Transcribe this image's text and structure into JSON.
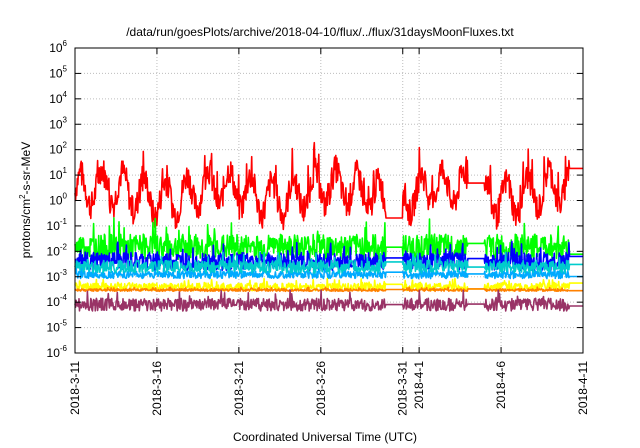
{
  "chart_data": {
    "type": "line",
    "title": "/data/run/goesPlots/archive/2018-04-10/flux/../flux/31daysMoonFluxes.txt",
    "xlabel": "Coordinated Universal Time (UTC)",
    "ylabel": "protons/cm²-s-sr-MeV",
    "ylabel_parts": {
      "pre": "protons/cm",
      "sup": "2",
      "post": "-s-sr-MeV"
    },
    "y_scale": "log",
    "ylim": [
      1e-06,
      1000000.0
    ],
    "y_ticks": [
      {
        "base": "10",
        "exp": "-6",
        "value": 1e-06
      },
      {
        "base": "10",
        "exp": "-5",
        "value": 1e-05
      },
      {
        "base": "10",
        "exp": "-4",
        "value": 0.0001
      },
      {
        "base": "10",
        "exp": "-3",
        "value": 0.001
      },
      {
        "base": "10",
        "exp": "-2",
        "value": 0.01
      },
      {
        "base": "10",
        "exp": "-1",
        "value": 0.1
      },
      {
        "base": "10",
        "exp": "0",
        "value": 1
      },
      {
        "base": "10",
        "exp": "1",
        "value": 10.0
      },
      {
        "base": "10",
        "exp": "2",
        "value": 100.0
      },
      {
        "base": "10",
        "exp": "3",
        "value": 1000.0
      },
      {
        "base": "10",
        "exp": "4",
        "value": 10000.0
      },
      {
        "base": "10",
        "exp": "5",
        "value": 100000.0
      },
      {
        "base": "10",
        "exp": "6",
        "value": 1000000.0
      }
    ],
    "x_ticks": [
      "2018-3-11",
      "2018-3-16",
      "2018-3-21",
      "2018-3-26",
      "2018-3-31",
      "2018-4-1",
      "2018-4-6",
      "2018-4-11"
    ],
    "xlim": [
      "2018-03-11",
      "2018-04-11"
    ],
    "grid": true,
    "legend": false,
    "gaps": [
      [
        "2018-03-30",
        "2018-03-31"
      ],
      [
        "2018-04-04",
        "2018-04-05"
      ]
    ],
    "series": [
      {
        "color": "#ff0000",
        "level": 2.0,
        "variability_decades": 0.55,
        "oscillation": true
      },
      {
        "color": "#00ff00",
        "level": 0.015,
        "variability_decades": 0.5,
        "oscillation": false
      },
      {
        "color": "#0000ff",
        "level": 0.004,
        "variability_decades": 0.35,
        "oscillation": false
      },
      {
        "color": "#00aaff",
        "level": 0.0012,
        "variability_decades": 0.15,
        "oscillation": false
      },
      {
        "color": "#00cccc",
        "level": 0.0025,
        "variability_decades": 0.25,
        "oscillation": false
      },
      {
        "color": "#ffff00",
        "level": 0.0004,
        "variability_decades": 0.15,
        "oscillation": false
      },
      {
        "color": "#ff8000",
        "level": 0.0003,
        "variability_decades": 0.05,
        "oscillation": false
      },
      {
        "color": "#993366",
        "level": 8e-05,
        "variability_decades": 0.25,
        "oscillation": false
      }
    ]
  }
}
